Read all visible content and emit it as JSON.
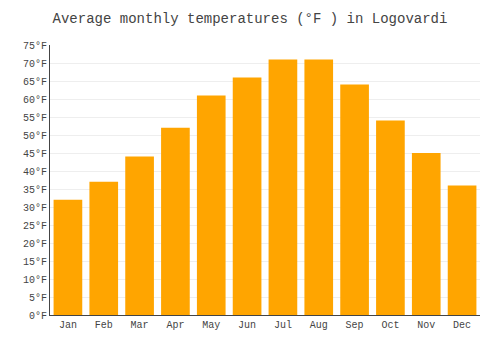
{
  "chart_data": {
    "type": "bar",
    "title": "Average monthly temperatures (°F ) in Logovardi",
    "categories": [
      "Jan",
      "Feb",
      "Mar",
      "Apr",
      "May",
      "Jun",
      "Jul",
      "Aug",
      "Sep",
      "Oct",
      "Nov",
      "Dec"
    ],
    "values": [
      32,
      37,
      44,
      52,
      61,
      66,
      71,
      71,
      64,
      54,
      45,
      36
    ],
    "color": "#FFA500",
    "ylim": [
      0,
      75
    ],
    "yticks": [
      {
        "value": 0,
        "label": "0°F"
      },
      {
        "value": 5,
        "label": "5°F"
      },
      {
        "value": 10,
        "label": "10°F"
      },
      {
        "value": 15,
        "label": "15°F"
      },
      {
        "value": 20,
        "label": "20°F"
      },
      {
        "value": 25,
        "label": "25°F"
      },
      {
        "value": 30,
        "label": "30°F"
      },
      {
        "value": 35,
        "label": "35°F"
      },
      {
        "value": 40,
        "label": "40°F"
      },
      {
        "value": 45,
        "label": "45°F"
      },
      {
        "value": 50,
        "label": "50°F"
      },
      {
        "value": 55,
        "label": "55°F"
      },
      {
        "value": 60,
        "label": "60°F"
      },
      {
        "value": 65,
        "label": "65°F"
      },
      {
        "value": 70,
        "label": "70°F"
      },
      {
        "value": 75,
        "label": "75°F"
      }
    ],
    "grid": true
  }
}
